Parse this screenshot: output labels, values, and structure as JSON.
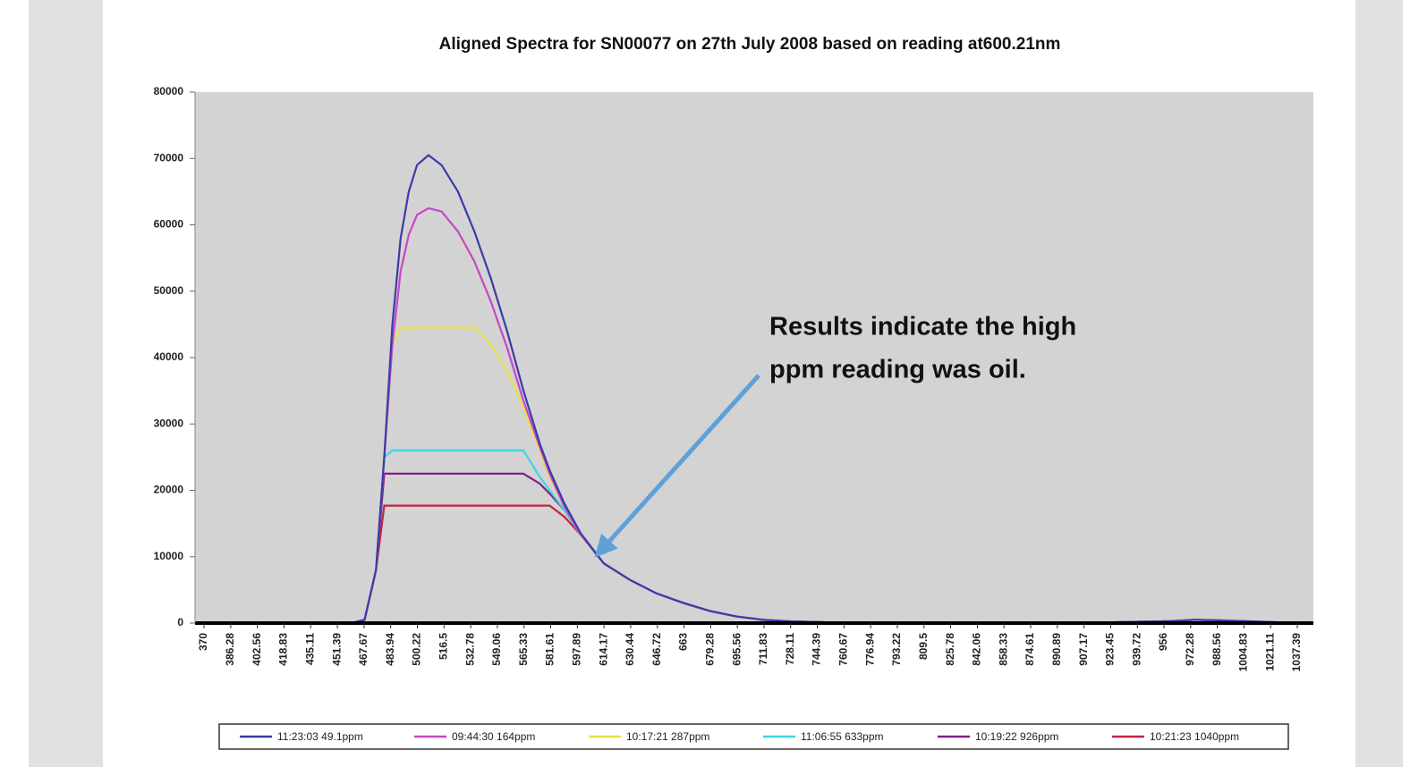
{
  "chart_data": {
    "type": "line",
    "title": "Aligned Spectra for SN00077 on 27th July 2008 based on reading at600.21nm",
    "annotation": [
      "Results indicate the high",
      "ppm reading was oil."
    ],
    "x": [
      460,
      468,
      475,
      480,
      485,
      490,
      495,
      500,
      507,
      515,
      525,
      535,
      545,
      555,
      565,
      575,
      581,
      590,
      600,
      614,
      630,
      646,
      663,
      679,
      695,
      711,
      728,
      760,
      800,
      900,
      960,
      975,
      990,
      1040
    ],
    "series": [
      {
        "name": "11:23:03 49.1ppm",
        "color": "#3b3ba8",
        "values": [
          0,
          500,
          8000,
          25000,
          45000,
          58000,
          65000,
          69000,
          70500,
          69000,
          65000,
          59000,
          52000,
          44000,
          35000,
          27000,
          23000,
          18000,
          13500,
          9000,
          6500,
          4500,
          3000,
          1800,
          1000,
          500,
          250,
          50,
          0,
          0,
          300,
          500,
          400,
          0
        ]
      },
      {
        "name": "09:44:30 164ppm",
        "color": "#c846c8",
        "values": [
          0,
          500,
          8000,
          25000,
          42000,
          53000,
          58500,
          61500,
          62500,
          62000,
          59000,
          54500,
          48500,
          41500,
          33500,
          26500,
          22500,
          17500,
          13300,
          9000,
          6500,
          4500,
          3000,
          1800,
          1000,
          500,
          250,
          50,
          0,
          0,
          300,
          500,
          400,
          0
        ]
      },
      {
        "name": "10:17:21 287ppm",
        "color": "#e6e04a",
        "values": [
          0,
          500,
          8000,
          25000,
          42000,
          44500,
          44500,
          44500,
          44500,
          44500,
          44500,
          44500,
          42000,
          38000,
          32500,
          26000,
          22000,
          17500,
          13300,
          9000,
          6500,
          4500,
          3000,
          1800,
          1000,
          500,
          250,
          50,
          0,
          0,
          300,
          500,
          400,
          0
        ]
      },
      {
        "name": "11:06:55 633ppm",
        "color": "#3fd6e2",
        "values": [
          0,
          500,
          8000,
          25000,
          26000,
          26000,
          26000,
          26000,
          26000,
          26000,
          26000,
          26000,
          26000,
          26000,
          26000,
          22000,
          20000,
          17000,
          13300,
          9000,
          6500,
          4500,
          3000,
          1800,
          1000,
          500,
          250,
          50,
          0,
          0,
          300,
          500,
          400,
          0
        ]
      },
      {
        "name": "10:19:22 926ppm",
        "color": "#822282",
        "values": [
          0,
          500,
          8000,
          22500,
          22500,
          22500,
          22500,
          22500,
          22500,
          22500,
          22500,
          22500,
          22500,
          22500,
          22500,
          21000,
          19500,
          17000,
          13300,
          9000,
          6500,
          4500,
          3000,
          1800,
          1000,
          500,
          250,
          50,
          0,
          0,
          300,
          500,
          400,
          0
        ]
      },
      {
        "name": "10:21:23 1040ppm",
        "color": "#c22242",
        "values": [
          0,
          500,
          8000,
          17700,
          17700,
          17700,
          17700,
          17700,
          17700,
          17700,
          17700,
          17700,
          17700,
          17700,
          17700,
          17700,
          17700,
          16000,
          13300,
          9000,
          6500,
          4500,
          3000,
          1800,
          1000,
          500,
          250,
          50,
          0,
          0,
          300,
          500,
          400,
          0
        ]
      }
    ],
    "xlim": [
      364.5,
      1047.2
    ],
    "xticks": [
      370,
      386.28,
      402.56,
      418.83,
      435.11,
      451.39,
      467.67,
      483.94,
      500.22,
      516.5,
      532.78,
      549.06,
      565.33,
      581.61,
      597.89,
      614.17,
      630.44,
      646.72,
      663,
      679.28,
      695.56,
      711.83,
      728.11,
      744.39,
      760.67,
      776.94,
      793.22,
      809.5,
      825.78,
      842.06,
      858.33,
      874.61,
      890.89,
      907.17,
      923.45,
      939.72,
      956,
      972.28,
      988.56,
      1004.83,
      1021.11,
      1037.39
    ],
    "ylim": [
      0,
      80000
    ],
    "yticks": [
      0,
      10000,
      20000,
      30000,
      40000,
      50000,
      60000,
      70000,
      80000
    ]
  }
}
